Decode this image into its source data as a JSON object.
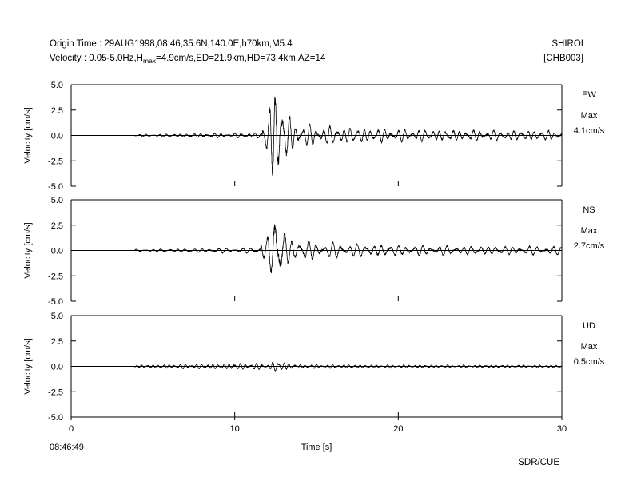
{
  "header": {
    "origin_prefix": "Origin Time : 29AUG1998,08:46,35.6N,140.0E,h70km,M5.4",
    "velocity_prefix": "Velocity : 0.05-5.0Hz,H",
    "hmax_sub": "max",
    "velocity_suffix": "=4.9cm/s,ED=21.9km,HD=73.4km,AZ=14",
    "station_name": "SHIROI",
    "station_code": "[CHB003]"
  },
  "footer": {
    "start_time": "08:46:49",
    "credit": "SDR/CUE"
  },
  "chart_data": {
    "type": "line",
    "xlabel": "Time [s]",
    "ylabel": "Velocity [cm/s]",
    "xlim": [
      0,
      30
    ],
    "ylim": [
      -5.0,
      5.0
    ],
    "xticks": [
      "0",
      "10",
      "20",
      "30"
    ],
    "yticks": [
      "5.0",
      "2.5",
      "0.0",
      "-2.5",
      "-5.0"
    ],
    "grid": false,
    "panels": [
      {
        "component": "EW",
        "max_label": "Max",
        "max_value": "4.1cm/s",
        "onset_s": 3.9,
        "pre_amp": 0.05,
        "s_arrival_s": 11.7,
        "peak_time_s": 12.4,
        "peak_amp": 4.1,
        "coda_amp": 0.9,
        "coda_tail": 0.35,
        "freq_hz": 2.4,
        "seed": 11
      },
      {
        "component": "NS",
        "max_label": "Max",
        "max_value": "2.7cm/s",
        "onset_s": 3.9,
        "pre_amp": 0.05,
        "s_arrival_s": 11.6,
        "peak_time_s": 12.5,
        "peak_amp": 2.7,
        "coda_amp": 0.8,
        "coda_tail": 0.3,
        "freq_hz": 2.0,
        "seed": 23
      },
      {
        "component": "UD",
        "max_label": "Max",
        "max_value": "0.5cm/s",
        "onset_s": 3.9,
        "pre_amp": 0.06,
        "s_arrival_s": 11.8,
        "peak_time_s": 12.6,
        "peak_amp": 0.5,
        "coda_amp": 0.15,
        "coda_tail": 0.1,
        "freq_hz": 3.0,
        "seed": 37
      }
    ]
  }
}
